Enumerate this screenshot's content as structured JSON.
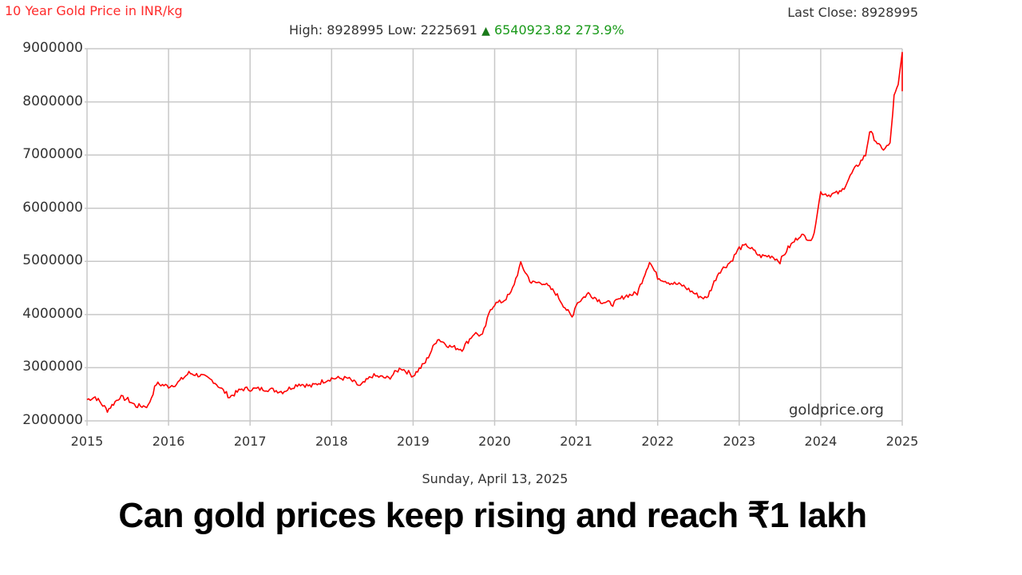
{
  "header": {
    "title": "10 Year Gold Price in INR/kg",
    "last_close_label": "Last Close: 8928995",
    "high_low": "High: 8928995 Low: 2225691",
    "change_icon": "triangle-up-icon",
    "change_glyph": "▲",
    "change": "6540923.82 273.9%"
  },
  "footer": {
    "date": "Sunday, April 13, 2025",
    "watermark": "goldprice.org"
  },
  "headline": "Can gold prices keep rising and reach ₹1 lakh",
  "colors": {
    "line": "#ff0000",
    "title": "#ff2a2a",
    "up": "#1a9a1a",
    "grid": "#c8c8c8"
  },
  "y_ticks": [
    "9000000",
    "8000000",
    "7000000",
    "6000000",
    "5000000",
    "4000000",
    "3000000",
    "2000000"
  ],
  "x_ticks": [
    "2015",
    "2016",
    "2017",
    "2018",
    "2019",
    "2020",
    "2021",
    "2022",
    "2023",
    "2024",
    "2025"
  ],
  "chart_data": {
    "type": "line",
    "title": "10 Year Gold Price in INR/kg",
    "xlabel": "",
    "ylabel": "",
    "xlim": [
      2015,
      2025
    ],
    "ylim": [
      2000000,
      9000000
    ],
    "grid": true,
    "legend": "none",
    "series": [
      {
        "name": "Gold Price (INR/kg)",
        "x": [
          2015.0,
          2015.1,
          2015.25,
          2015.4,
          2015.5,
          2015.6,
          2015.75,
          2015.85,
          2016.0,
          2016.1,
          2016.25,
          2016.4,
          2016.55,
          2016.75,
          2016.9,
          2017.0,
          2017.2,
          2017.4,
          2017.6,
          2017.75,
          2017.9,
          2018.0,
          2018.2,
          2018.35,
          2018.5,
          2018.7,
          2018.85,
          2019.0,
          2019.15,
          2019.3,
          2019.45,
          2019.6,
          2019.75,
          2019.85,
          2019.95,
          2020.0,
          2020.1,
          2020.2,
          2020.32,
          2020.45,
          2020.6,
          2020.75,
          2020.9,
          2020.95,
          2021.0,
          2021.15,
          2021.3,
          2021.45,
          2021.6,
          2021.75,
          2021.9,
          2022.0,
          2022.15,
          2022.3,
          2022.5,
          2022.6,
          2022.75,
          2022.9,
          2023.0,
          2023.1,
          2023.25,
          2023.4,
          2023.5,
          2023.6,
          2023.75,
          2023.9,
          2024.0,
          2024.1,
          2024.25,
          2024.4,
          2024.55,
          2024.6,
          2024.75,
          2024.85,
          2024.9,
          2024.95,
          2025.0
        ],
        "values": [
          2400000,
          2450000,
          2200000,
          2450000,
          2400000,
          2280000,
          2280000,
          2700000,
          2650000,
          2700000,
          2900000,
          2850000,
          2750000,
          2450000,
          2600000,
          2600000,
          2600000,
          2550000,
          2700000,
          2650000,
          2750000,
          2800000,
          2800000,
          2650000,
          2850000,
          2800000,
          3000000,
          2850000,
          3100000,
          3550000,
          3400000,
          3350000,
          3650000,
          3600000,
          4100000,
          4200000,
          4250000,
          4400000,
          4950000,
          4600000,
          4600000,
          4400000,
          4050000,
          3950000,
          4200000,
          4400000,
          4250000,
          4200000,
          4350000,
          4400000,
          5000000,
          4700000,
          4600000,
          4550000,
          4350000,
          4300000,
          4800000,
          5000000,
          5250000,
          5300000,
          5100000,
          5100000,
          5000000,
          5250000,
          5500000,
          5400000,
          6300000,
          6250000,
          6300000,
          6700000,
          7000000,
          7450000,
          7100000,
          7200000,
          8100000,
          8300000,
          8928995
        ]
      }
    ],
    "annotations": [
      "High: 8928995",
      "Low: 2225691",
      "▲ 6540923.82 273.9%",
      "Last Close: 8928995",
      "goldprice.org",
      "Sunday, April 13, 2025"
    ]
  }
}
